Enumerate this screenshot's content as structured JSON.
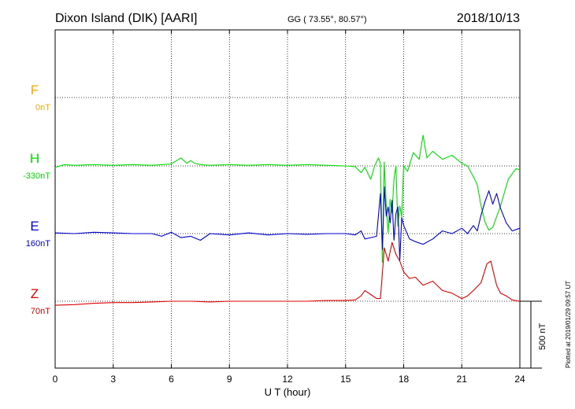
{
  "header": {
    "station": "Dixon Island (DIK)  [AARI]",
    "coords": "GG ( 73.55°,  80.57°)",
    "date": "2018/10/13"
  },
  "side_note": "Plotted at 2019/01/29 09:57 UT",
  "scale_label": "500 nT",
  "chart_data": {
    "type": "line",
    "title": "Dixon Island (DIK)  [AARI]",
    "xlabel": "U T (hour)",
    "ylabel": "",
    "xlim": [
      0,
      24
    ],
    "x_ticks": [
      0,
      3,
      6,
      9,
      12,
      15,
      18,
      21,
      24
    ],
    "x_tick_labels": [
      "0",
      "3",
      "6",
      "9",
      "12",
      "15",
      "18",
      "21",
      "24"
    ],
    "grid": true,
    "scale_bar_nT": 500,
    "ylim_nT": [
      -1000,
      1000
    ],
    "channels": [
      {
        "name": "F",
        "baseline_label": "0nT",
        "color": "#f5a800",
        "baseline_index": 0
      },
      {
        "name": "H",
        "baseline_label": "-330nT",
        "color": "#00e000",
        "baseline_index": 1
      },
      {
        "name": "E",
        "baseline_label": "160nT",
        "color": "#0000cc",
        "baseline_index": 2
      },
      {
        "name": "Z",
        "baseline_label": "70nT",
        "color": "#e00000",
        "baseline_index": 3
      }
    ],
    "series": [
      {
        "name": "H",
        "x": [
          0,
          0.5,
          1,
          2,
          3,
          4,
          5,
          6,
          6.5,
          6.8,
          7,
          7.2,
          7.5,
          8,
          9,
          10,
          11,
          12,
          13,
          14,
          15,
          15.5,
          15.8,
          16.0,
          16.3,
          16.5,
          16.7,
          16.8,
          16.9,
          17.0,
          17.1,
          17.2,
          17.3,
          17.4,
          17.5,
          17.6,
          17.7,
          17.8,
          17.9,
          18.0,
          18.2,
          18.5,
          18.8,
          19.0,
          19.2,
          19.5,
          20,
          20.5,
          21,
          21.3,
          21.6,
          21.8,
          22.0,
          22.2,
          22.4,
          22.6,
          23.0,
          23.4,
          23.8,
          24
        ],
        "values": [
          -10,
          10,
          5,
          10,
          5,
          10,
          5,
          15,
          60,
          20,
          40,
          20,
          10,
          5,
          10,
          5,
          10,
          5,
          10,
          5,
          0,
          -5,
          -50,
          -10,
          -100,
          0,
          60,
          20,
          -720,
          30,
          -300,
          -500,
          -250,
          -350,
          -100,
          0,
          -450,
          -300,
          -380,
          0,
          -40,
          100,
          50,
          230,
          60,
          110,
          50,
          80,
          20,
          0,
          -80,
          -140,
          -300,
          -420,
          -480,
          -460,
          -300,
          -100,
          -20,
          -30
        ],
        "color": "#00e000"
      },
      {
        "name": "E",
        "x": [
          0,
          1,
          2,
          3,
          4,
          5,
          5.5,
          6,
          6.5,
          7,
          7.5,
          8,
          9,
          10,
          11,
          12,
          13,
          14,
          15,
          15.5,
          15.8,
          16.0,
          16.3,
          16.6,
          16.8,
          16.9,
          17.0,
          17.1,
          17.2,
          17.3,
          17.4,
          17.5,
          17.6,
          17.7,
          17.8,
          17.9,
          18.0,
          18.3,
          18.6,
          19,
          19.5,
          20,
          20.5,
          21,
          21.3,
          21.6,
          21.8,
          22.0,
          22.2,
          22.4,
          22.6,
          22.8,
          23.0,
          23.3,
          23.6,
          24
        ],
        "values": [
          5,
          0,
          10,
          5,
          0,
          0,
          -20,
          10,
          -30,
          -20,
          -50,
          0,
          -10,
          5,
          -10,
          0,
          -5,
          0,
          0,
          -10,
          20,
          -40,
          -30,
          -20,
          300,
          -120,
          350,
          130,
          200,
          80,
          250,
          -50,
          150,
          200,
          -200,
          120,
          60,
          -40,
          -60,
          -80,
          -40,
          20,
          0,
          40,
          0,
          60,
          20,
          140,
          240,
          320,
          220,
          300,
          190,
          80,
          20,
          40
        ],
        "color": "#0000cc"
      },
      {
        "name": "Z",
        "x": [
          0,
          1,
          2,
          3,
          4,
          5,
          6,
          7,
          8,
          9,
          10,
          11,
          12,
          13,
          14,
          15,
          15.5,
          15.8,
          16.0,
          16.3,
          16.6,
          16.8,
          17.0,
          17.2,
          17.4,
          17.6,
          17.8,
          18.0,
          18.3,
          18.6,
          19,
          19.5,
          20,
          20.5,
          21,
          21.3,
          21.6,
          22.0,
          22.3,
          22.5,
          22.8,
          23.0,
          23.3,
          23.6,
          24
        ],
        "values": [
          -30,
          -25,
          -15,
          -10,
          -10,
          -5,
          0,
          0,
          -5,
          0,
          0,
          0,
          0,
          0,
          5,
          5,
          10,
          40,
          80,
          50,
          20,
          20,
          400,
          300,
          440,
          350,
          300,
          220,
          170,
          180,
          120,
          150,
          80,
          60,
          20,
          40,
          80,
          140,
          280,
          300,
          120,
          60,
          40,
          10,
          0
        ],
        "color": "#e00000"
      }
    ]
  }
}
